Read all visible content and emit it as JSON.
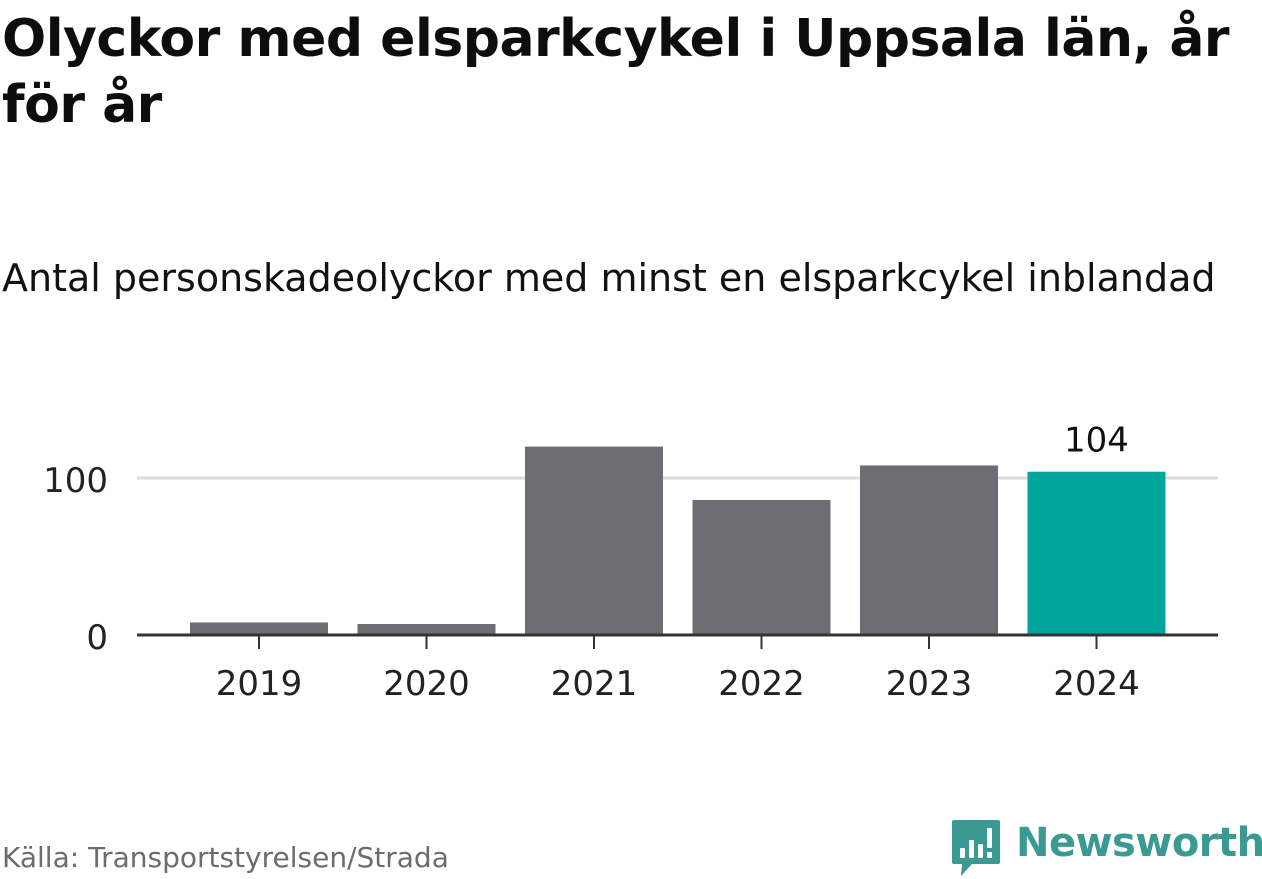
{
  "chart_data": {
    "type": "bar",
    "title": "Olyckor med elsparkcykel i Uppsala län, år för år",
    "subtitle": "Antal personskadeolyckor med minst en elsparkcykel inblandad",
    "categories": [
      "2019",
      "2020",
      "2021",
      "2022",
      "2023",
      "2024"
    ],
    "values": [
      8,
      7,
      120,
      86,
      108,
      104
    ],
    "data_labels": [
      "",
      "",
      "",
      "",
      "",
      "104"
    ],
    "yticks": [
      0,
      100
    ],
    "ylim": [
      0,
      130
    ],
    "grid": true,
    "colors": {
      "default": "#6e6d74",
      "highlight": "#00a59b",
      "grid": "#dddddd",
      "axis": "#333333"
    },
    "highlight_index": 5
  },
  "source": "Källa: Transportstyrelsen/Strada",
  "brand": {
    "name": "Newsworthy",
    "icon": "bar-chart-speech-bubble-icon",
    "color": "#3a9a92"
  }
}
